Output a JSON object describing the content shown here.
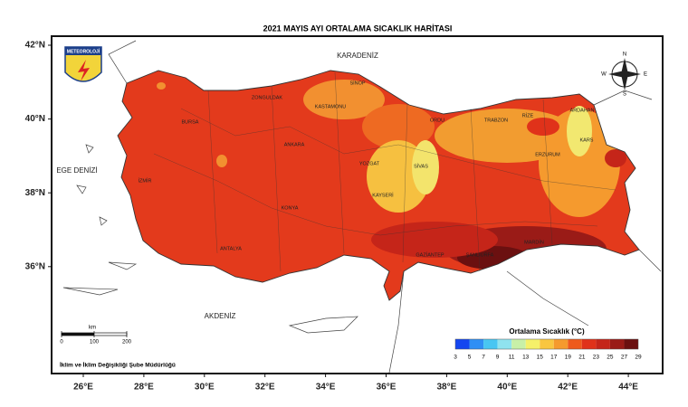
{
  "title": "2021 MAYIS AYI ORTALAMA SICAKLIK HARİTASI",
  "logo": "METEOROLOJİ",
  "seas": [
    "KARADENİZ",
    "EGE DENİZİ",
    "AKDENİZ"
  ],
  "cities": [
    "ZONGULDAK",
    "KASTAMONU",
    "SİNOP",
    "ORDU",
    "TRABZON",
    "RİZE",
    "ARDAHAN",
    "KARS",
    "ERZURUM",
    "YOZGAT",
    "SİVAS",
    "KAYSERİ",
    "ŞANLIURFA",
    "GAZİANTEP",
    "KONYA",
    "ANKARA",
    "BURSA",
    "İZMİR",
    "ANTALYA",
    "MARDİN"
  ],
  "lat_ticks": [
    {
      "value": 42,
      "label": "42°N"
    },
    {
      "value": 40,
      "label": "40°N"
    },
    {
      "value": 38,
      "label": "38°N"
    },
    {
      "value": 36,
      "label": "36°N"
    }
  ],
  "lon_ticks": [
    {
      "value": 26,
      "label": "26°E"
    },
    {
      "value": 28,
      "label": "28°E"
    },
    {
      "value": 30,
      "label": "30°E"
    },
    {
      "value": 32,
      "label": "32°E"
    },
    {
      "value": 34,
      "label": "34°E"
    },
    {
      "value": 36,
      "label": "36°E"
    },
    {
      "value": 38,
      "label": "38°E"
    },
    {
      "value": 40,
      "label": "40°E"
    },
    {
      "value": 42,
      "label": "42°E"
    },
    {
      "value": 44,
      "label": "44°E"
    }
  ],
  "compass": [
    "N",
    "E",
    "S",
    "W"
  ],
  "scale": {
    "unit": "km",
    "ticks": [
      0,
      100,
      200
    ]
  },
  "legend": {
    "title": "Ortalama Sıcaklık (°C)",
    "ticks": [
      3,
      5,
      7,
      9,
      11,
      13,
      15,
      17,
      19,
      21,
      23,
      25,
      27,
      29
    ],
    "colors": [
      "#1446f0",
      "#2f8ff5",
      "#48c6f2",
      "#8fe3ef",
      "#c8f0a8",
      "#f5f06a",
      "#f9c640",
      "#f59a2e",
      "#ee5a1c",
      "#e0321a",
      "#c52519",
      "#9a1b17",
      "#6b1010"
    ]
  },
  "footer": "İklim ve İklim Değişikliği Şube Müdürlüğü"
}
